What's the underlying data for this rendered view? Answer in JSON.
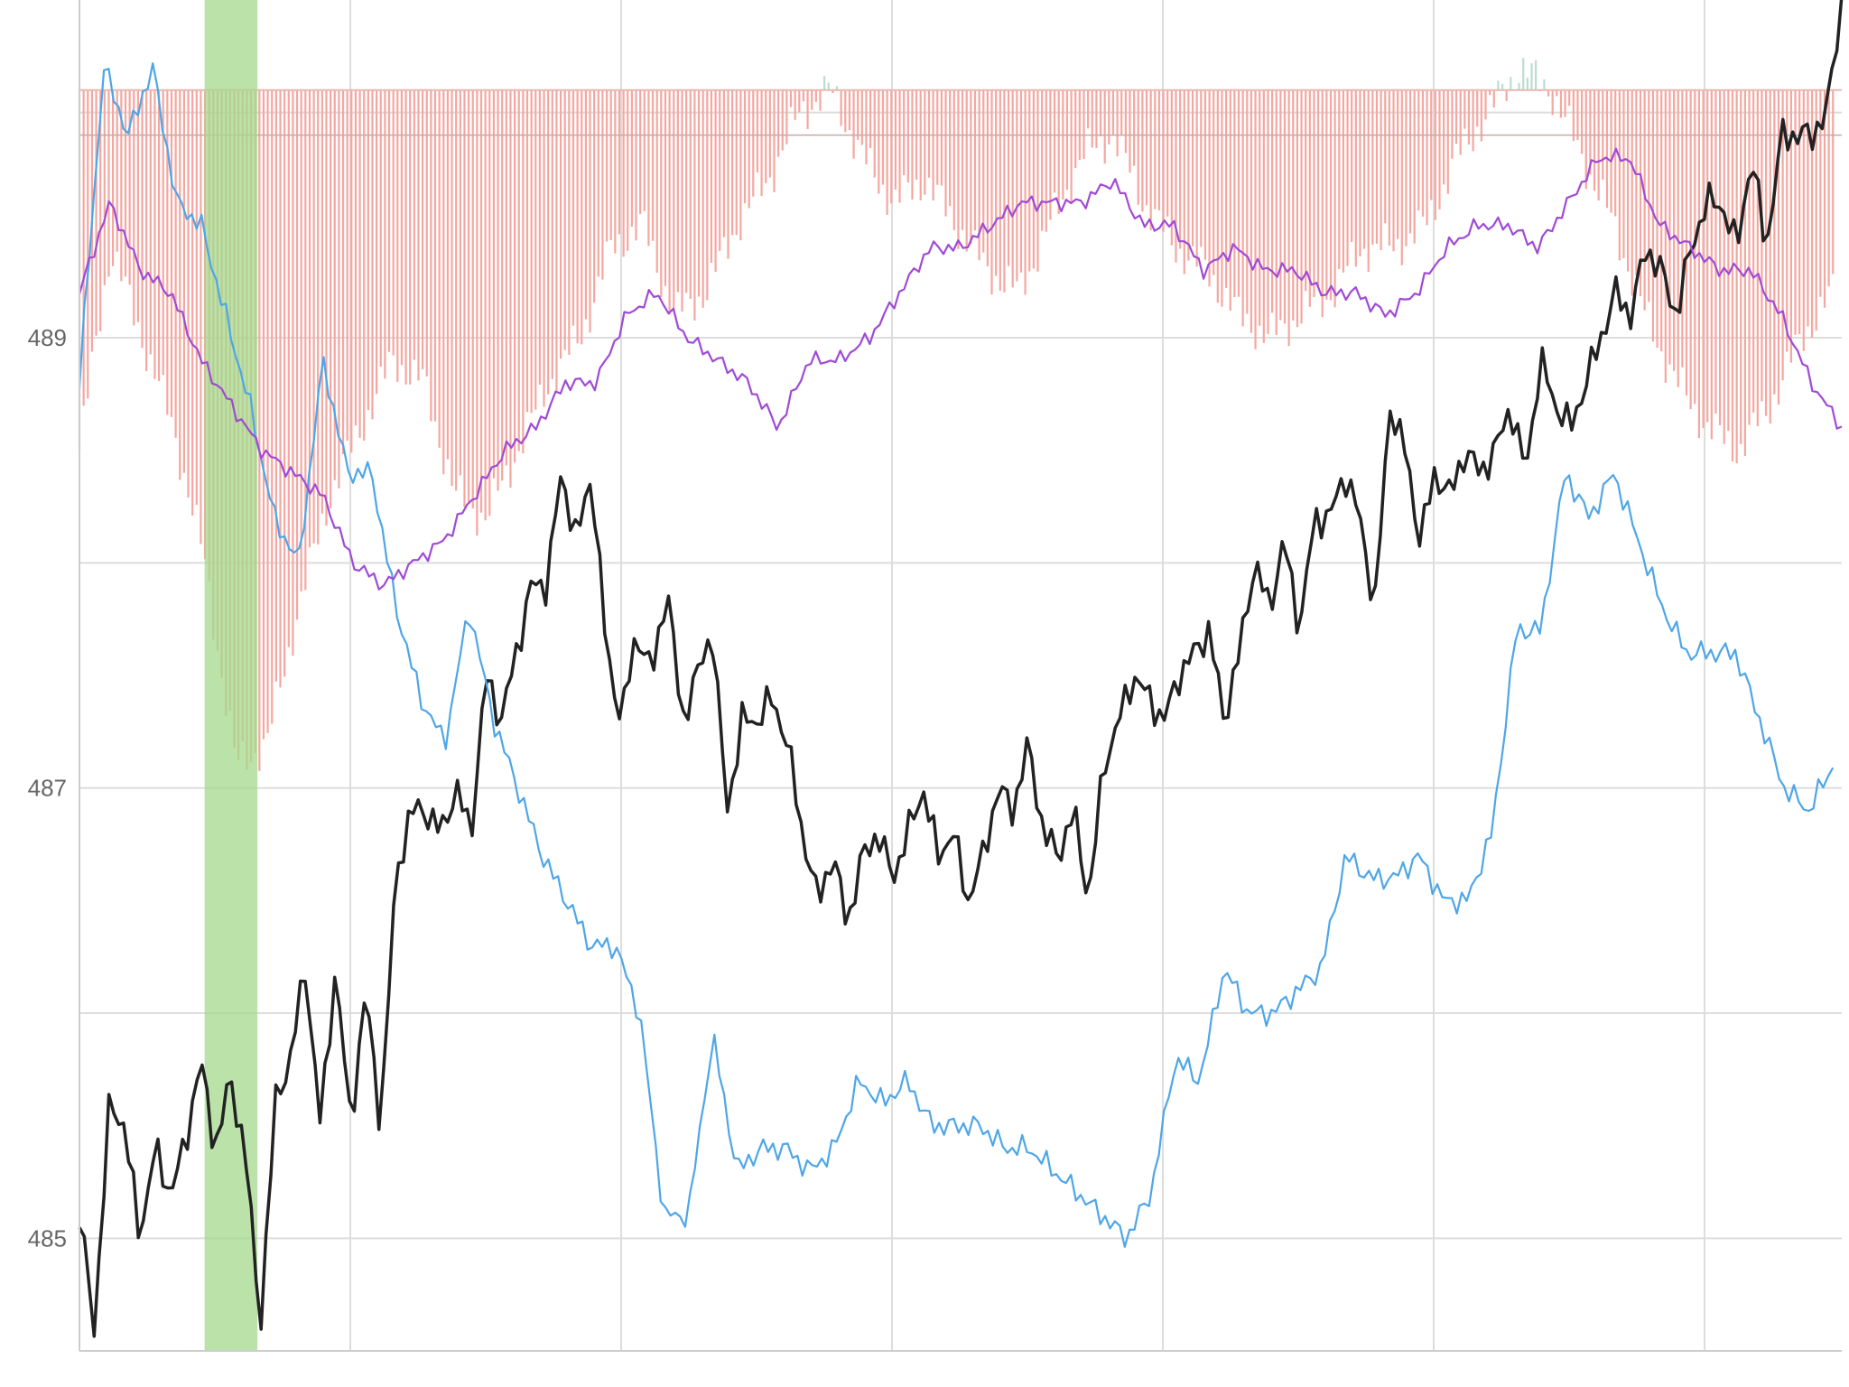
{
  "chart_data": {
    "type": "line",
    "y_ticks": [
      {
        "value": 485,
        "label": "485"
      },
      {
        "value": 487,
        "label": "487"
      },
      {
        "value": 489,
        "label": "489"
      }
    ],
    "y_gridlines": [
      485,
      486,
      487,
      488,
      489,
      490
    ],
    "x_gridline_count": 7,
    "x_tick_labels_visible": false,
    "ylim": [
      484.5,
      490.5
    ],
    "grid": true,
    "colors": {
      "price": "#222222",
      "blue": "#4da6e8",
      "purple": "#a04ad6",
      "bars_negative": "#f4a7a0",
      "bars_positive": "#b9ddd0",
      "highlight_band": "#a4d98c",
      "grid": "#dddddd",
      "axis": "#cccccc"
    },
    "series": [
      {
        "key": "price",
        "color": "#222222",
        "values": [
          485.1,
          484.6,
          485.6,
          485.5,
          485.0,
          485.4,
          485.2,
          485.4,
          485.8,
          485.4,
          485.7,
          485.4,
          484.6,
          485.6,
          485.8,
          486.2,
          485.5,
          486.2,
          485.5,
          486.1,
          485.5,
          486.6,
          486.9,
          486.9,
          486.8,
          487.0,
          486.8,
          487.5,
          487.3,
          487.6,
          487.9,
          487.9,
          488.4,
          488.1,
          488.4,
          487.6,
          487.3,
          487.7,
          487.5,
          487.9,
          487.3,
          487.5,
          487.7,
          486.9,
          487.3,
          487.3,
          487.4,
          487.2,
          486.8,
          486.5,
          486.7,
          486.4,
          486.7,
          486.8,
          486.6,
          486.8,
          487.0,
          486.7,
          486.8,
          486.5,
          486.7,
          487.0,
          486.9,
          487.2,
          486.8,
          486.7,
          486.9,
          486.5,
          487.1,
          487.3,
          487.5,
          487.4,
          487.3,
          487.5,
          487.6,
          487.7,
          487.3,
          487.6,
          488.0,
          487.8,
          488.1,
          487.7,
          488.2,
          488.2,
          488.4,
          488.2,
          487.8,
          488.7,
          488.5,
          488.1,
          488.4,
          488.3,
          488.5,
          488.4,
          488.5,
          488.7,
          488.4,
          488.9,
          488.7,
          488.6,
          488.8,
          489.0,
          489.2,
          489.1,
          489.4,
          489.3,
          489.1,
          489.4,
          489.6,
          489.6,
          489.4,
          489.8,
          489.4,
          489.9,
          489.9,
          489.9,
          490.0,
          490.5
        ],
        "y_max_marker": 490.5
      },
      {
        "key": "blue",
        "color": "#4da6e8",
        "values": [
          488.8,
          490.2,
          489.9,
          490.2,
          489.6,
          489.5,
          489.1,
          488.7,
          488.2,
          488.0,
          488.9,
          488.4,
          488.4,
          487.8,
          487.4,
          487.2,
          487.8,
          487.3,
          487.0,
          486.7,
          486.5,
          486.3,
          486.3,
          486.0,
          485.1,
          485.1,
          485.9,
          485.3,
          485.4,
          485.4,
          485.3,
          485.4,
          485.7,
          485.6,
          485.7,
          485.5,
          485.5,
          485.5,
          485.4,
          485.4,
          485.3,
          485.2,
          485.1,
          485.0,
          485.2,
          485.8,
          485.7,
          486.2,
          486.0,
          486.0,
          486.1,
          486.2,
          486.7,
          486.6,
          486.6,
          486.7,
          486.5,
          486.5,
          486.8,
          487.7,
          487.7,
          488.4,
          488.2,
          488.4,
          488.1,
          487.8,
          487.6,
          487.6,
          487.6,
          487.3,
          487.0,
          486.9,
          487.1
        ],
        "x_range_fraction": [
          0.0,
          0.995
        ]
      },
      {
        "key": "purple",
        "color": "#a04ad6",
        "values": [
          489.2,
          489.6,
          489.3,
          489.2,
          488.9,
          488.7,
          488.5,
          488.4,
          488.3,
          488.0,
          487.9,
          488.0,
          488.1,
          488.3,
          488.5,
          488.6,
          488.8,
          488.8,
          489.1,
          489.2,
          489.0,
          488.9,
          488.8,
          488.6,
          488.9,
          488.9,
          489.0,
          489.2,
          489.4,
          489.4,
          489.5,
          489.6,
          489.6,
          489.6,
          489.7,
          489.5,
          489.5,
          489.3,
          489.4,
          489.3,
          489.3,
          489.2,
          489.2,
          489.1,
          489.2,
          489.4,
          489.5,
          489.5,
          489.4,
          489.6,
          489.8,
          489.8,
          489.5,
          489.4,
          489.3,
          489.3,
          489.1,
          488.8,
          488.6
        ]
      }
    ],
    "bars": {
      "baseline": 490.1,
      "values": [
        488.5,
        489.4,
        489.0,
        488.6,
        488.0,
        487.1,
        487.2,
        487.8,
        488.3,
        488.6,
        488.9,
        488.8,
        488.3,
        488.2,
        488.5,
        488.8,
        489.0,
        489.4,
        489.5,
        489.1,
        489.2,
        489.5,
        489.7,
        490.0,
        490.1,
        489.8,
        489.6,
        489.7,
        489.5,
        489.3,
        489.2,
        489.5,
        489.8,
        489.9,
        489.6,
        489.4,
        489.3,
        489.1,
        489.0,
        489.1,
        489.2,
        489.4,
        489.4,
        489.5,
        489.8,
        490.0,
        490.2,
        490.1,
        489.8,
        489.5,
        489.1,
        488.8,
        488.6,
        488.5,
        488.7,
        489.0,
        489.2
      ],
      "color_negative": "#f4a7a0",
      "color_positive": "#b9ddd0"
    },
    "highlight_band": {
      "x_start_fraction": 0.071,
      "x_end_fraction": 0.101
    },
    "title": "",
    "xlabel": "",
    "ylabel": ""
  }
}
